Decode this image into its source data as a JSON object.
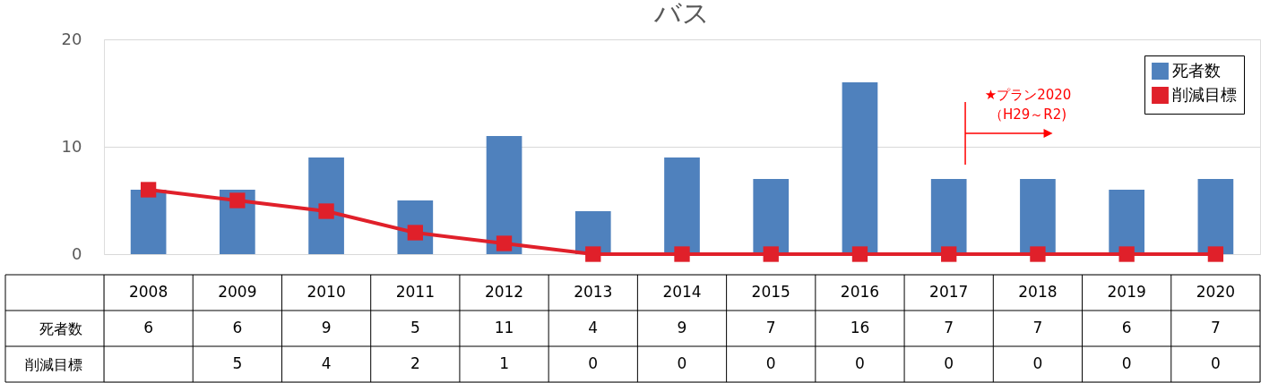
{
  "chart_data": {
    "type": "bar",
    "title": "バス",
    "categories": [
      "2008",
      "2009",
      "2010",
      "2011",
      "2012",
      "2013",
      "2014",
      "2015",
      "2016",
      "2017",
      "2018",
      "2019",
      "2020"
    ],
    "series": [
      {
        "name": "死者数",
        "color": "#4f81bd",
        "values": [
          6,
          6,
          9,
          5,
          11,
          4,
          9,
          7,
          16,
          7,
          7,
          6,
          7
        ],
        "value_labels": [
          "6",
          "6",
          "9",
          "5",
          "11",
          "4",
          "9",
          "7",
          "16",
          "7",
          "7",
          "6",
          "7"
        ]
      },
      {
        "name": "削減目標",
        "type": "line",
        "color": "#e0202a",
        "marker": "square",
        "values": [
          6,
          5,
          4,
          2,
          1,
          0,
          0,
          0,
          0,
          0,
          0,
          0,
          0
        ],
        "value_labels": [
          null,
          "5",
          "4",
          "2",
          "1",
          "0",
          "0",
          "0",
          "0",
          "0",
          "0",
          "0",
          "0"
        ]
      }
    ],
    "ylim": [
      0,
      20
    ],
    "yticks": [
      0,
      10,
      20
    ],
    "grid": "y",
    "legend": "top right",
    "annotations": [
      "★プラン2020\n（H29～R2)"
    ]
  }
}
